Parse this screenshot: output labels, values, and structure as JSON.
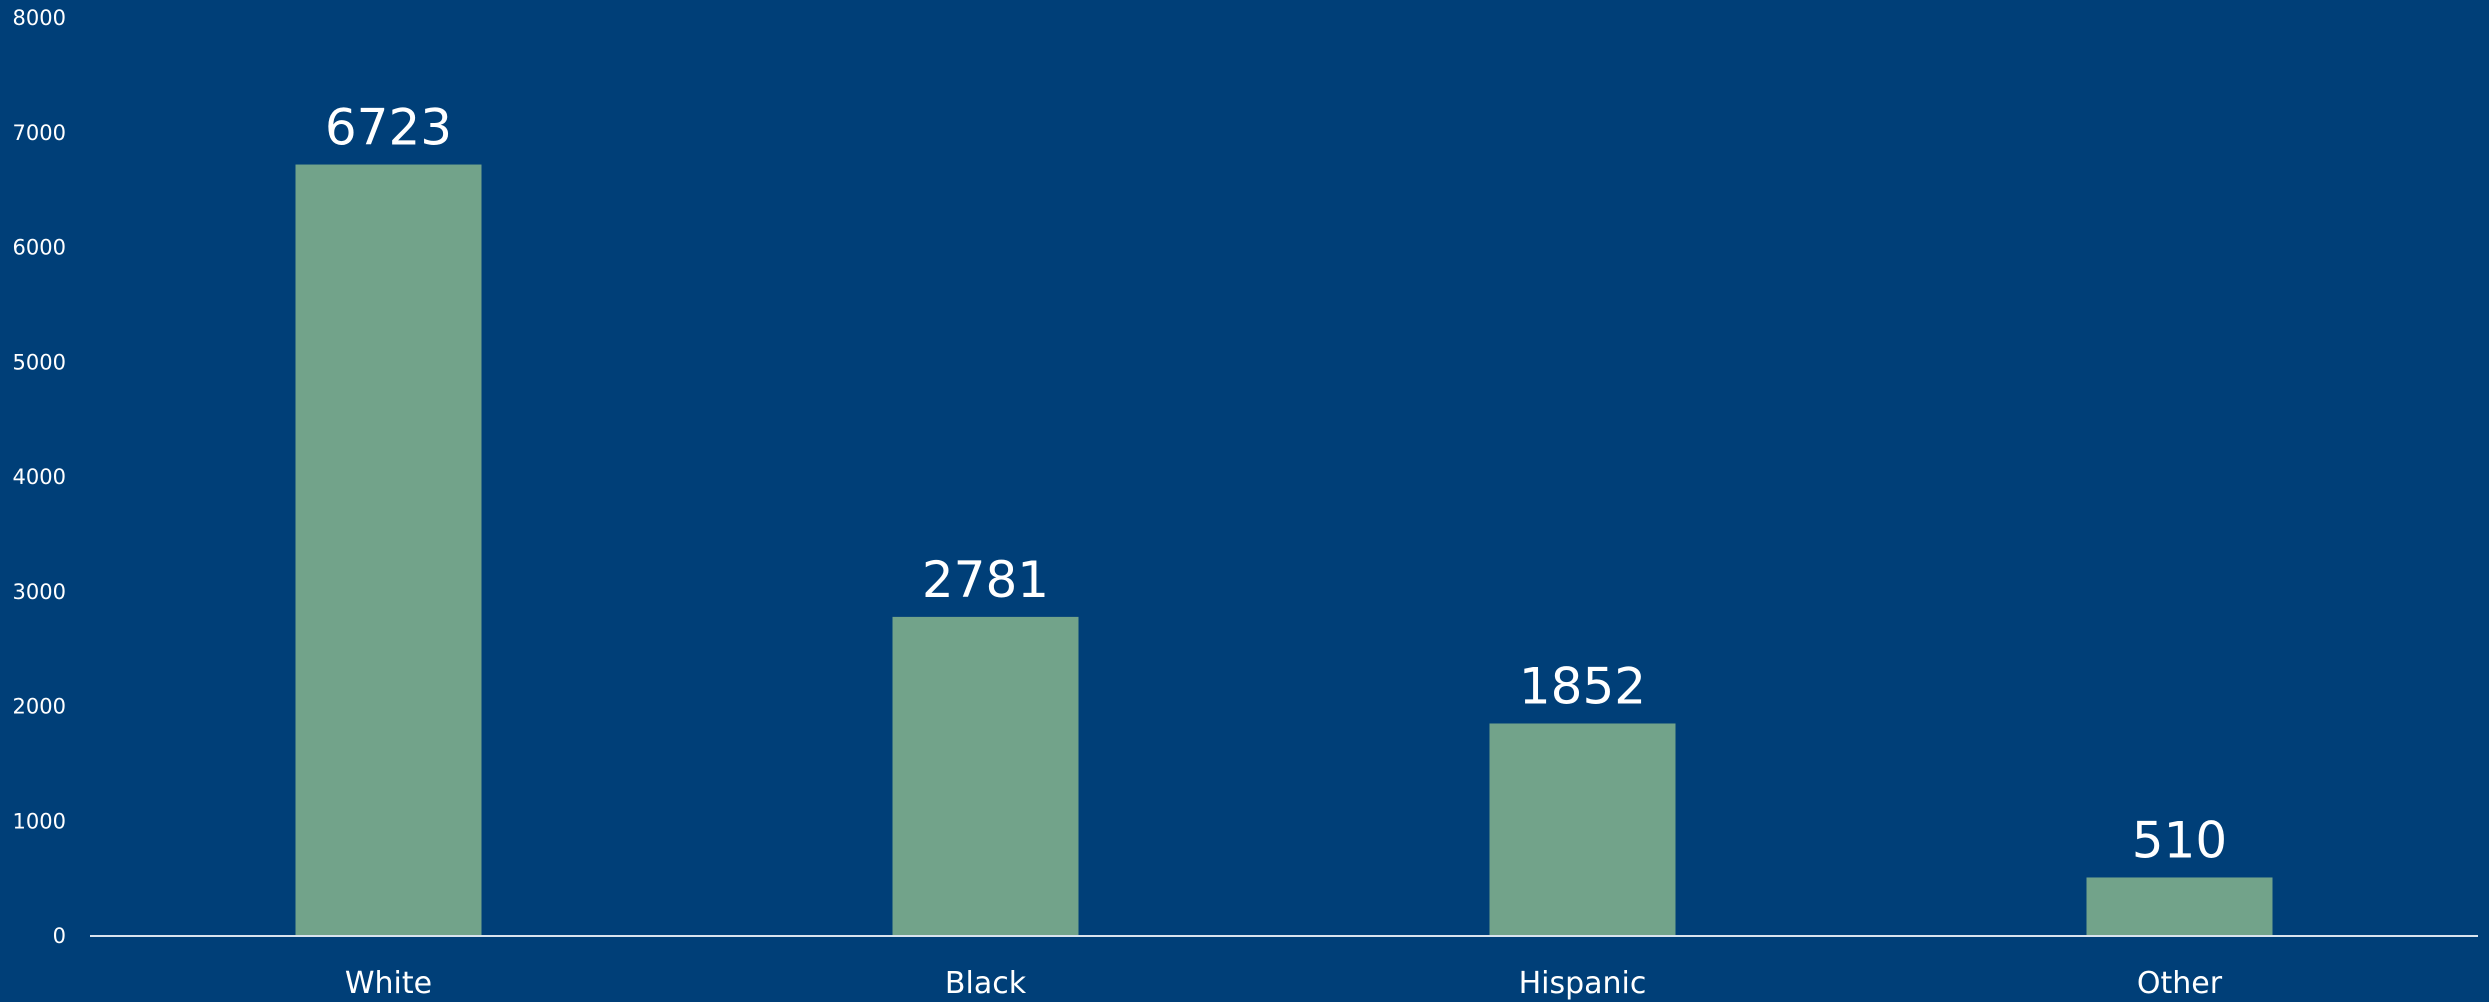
{
  "colors": {
    "background": "#003f78",
    "bar": "#72a38a",
    "axis": "#d9e3ee",
    "text": "#ffffff"
  },
  "chart_data": {
    "type": "bar",
    "categories": [
      "White",
      "Black",
      "Hispanic",
      "Other"
    ],
    "values": [
      6723,
      2781,
      1852,
      510
    ],
    "data_labels": [
      "6723",
      "2781",
      "1852",
      "510"
    ],
    "ylim": [
      0,
      8000
    ],
    "yticks": [
      0,
      1000,
      2000,
      3000,
      4000,
      5000,
      6000,
      7000,
      8000
    ],
    "grid": false,
    "legend": "none"
  }
}
